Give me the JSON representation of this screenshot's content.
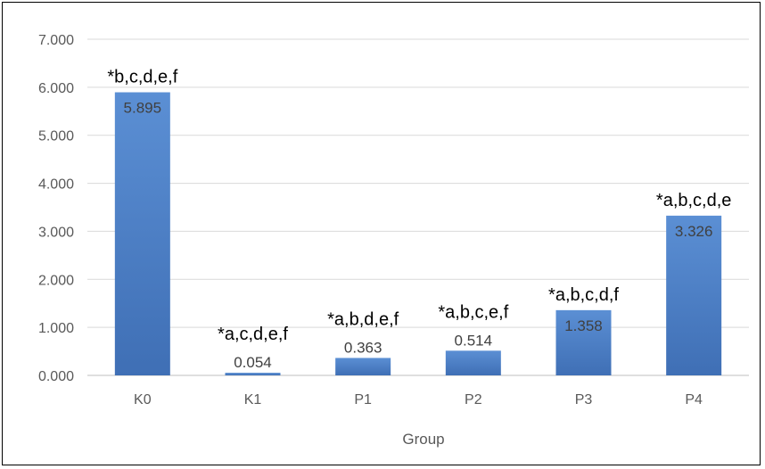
{
  "chart_data": {
    "type": "bar",
    "categories": [
      "K0",
      "K1",
      "P1",
      "P2",
      "P3",
      "P4"
    ],
    "values": [
      5.895,
      0.054,
      0.363,
      0.514,
      1.358,
      3.326
    ],
    "value_labels": [
      "5.895",
      "0.054",
      "0.363",
      "0.514",
      "1.358",
      "3.326"
    ],
    "annotations": [
      "*b,c,d,e,f",
      "*a,c,d,e,f",
      "*a,b,d,e,f",
      "*a,b,c,e,f",
      "*a,b,c,d,f",
      "*a,b,c,d,e"
    ],
    "xlabel": "Group",
    "ylabel": "",
    "ylim": [
      0,
      7
    ],
    "yticks": [
      "0.000",
      "1.000",
      "2.000",
      "3.000",
      "4.000",
      "5.000",
      "6.000",
      "7.000"
    ],
    "grid": true,
    "legend": "none",
    "colors": {
      "bar_top": "#5b8fd4",
      "bar_bottom": "#3f6fb5",
      "grid": "#d9d9d9",
      "axis": "#bfbfbf"
    }
  }
}
